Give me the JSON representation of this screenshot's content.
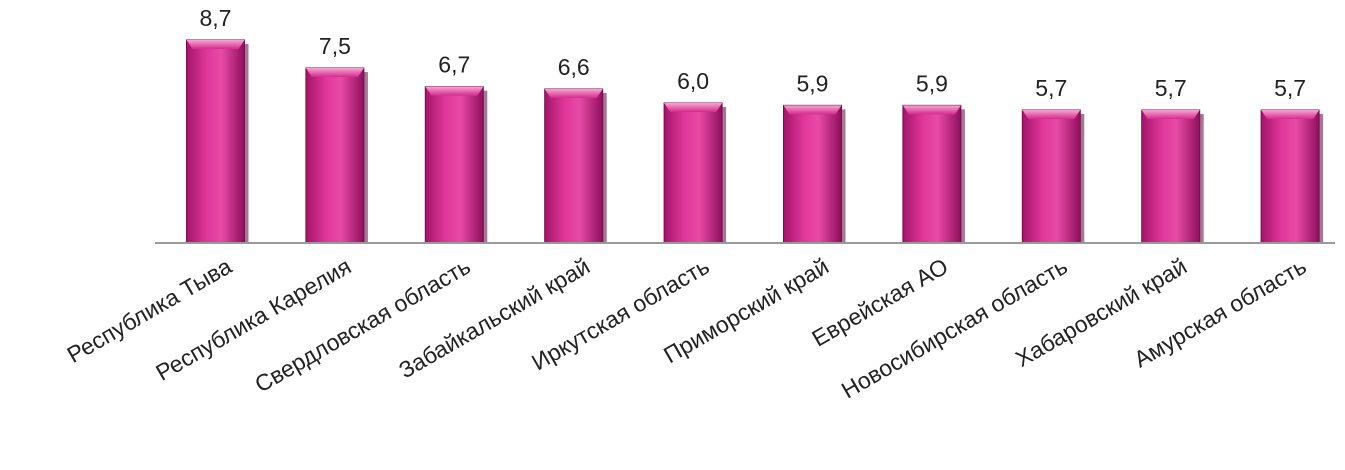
{
  "chart_data": {
    "type": "bar",
    "categories": [
      "Республика Тыва",
      "Республика Карелия",
      "Свердловская область",
      "Забайкальский край",
      "Иркутская область",
      "Приморский край",
      "Еврейская АО",
      "Новосибирская область",
      "Хабаровский край",
      "Амурская область"
    ],
    "values": [
      8.7,
      7.5,
      6.7,
      6.6,
      6.0,
      5.9,
      5.9,
      5.7,
      5.7,
      5.7
    ],
    "value_labels": [
      "8,7",
      "7,5",
      "6,7",
      "6,6",
      "6,0",
      "5,9",
      "5,9",
      "5,7",
      "5,7",
      "5,7"
    ],
    "ylim": [
      0,
      8.7
    ],
    "grid": false,
    "legend": "none",
    "colors": {
      "bar": "#d9268e",
      "bar_light": "#f27cc0",
      "bar_dark": "#9c1063",
      "axis": "#9a9a9a",
      "text": "#222222"
    }
  }
}
